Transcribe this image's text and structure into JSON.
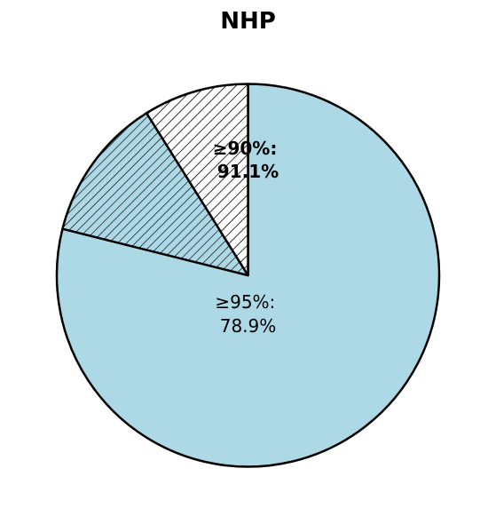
{
  "chart_data": {
    "type": "pie",
    "title": "NHP",
    "start_angle_deg": 90,
    "direction": "clockwise",
    "slices": [
      {
        "value": 78.9,
        "color": "#ADD8E6",
        "hatch": "none"
      },
      {
        "value": 12.2,
        "color": "#ADD8E6",
        "hatch": "dense-diagonal"
      },
      {
        "value": 8.9,
        "color": "#FFFFFF",
        "hatch": "diagonal"
      }
    ],
    "labels": [
      {
        "lines": [
          "≥95%:",
          "78.9%"
        ],
        "bold": false
      },
      {
        "lines": [
          "≥90%:",
          "91.1%"
        ],
        "bold": true
      }
    ],
    "edge_color": "#000000"
  }
}
